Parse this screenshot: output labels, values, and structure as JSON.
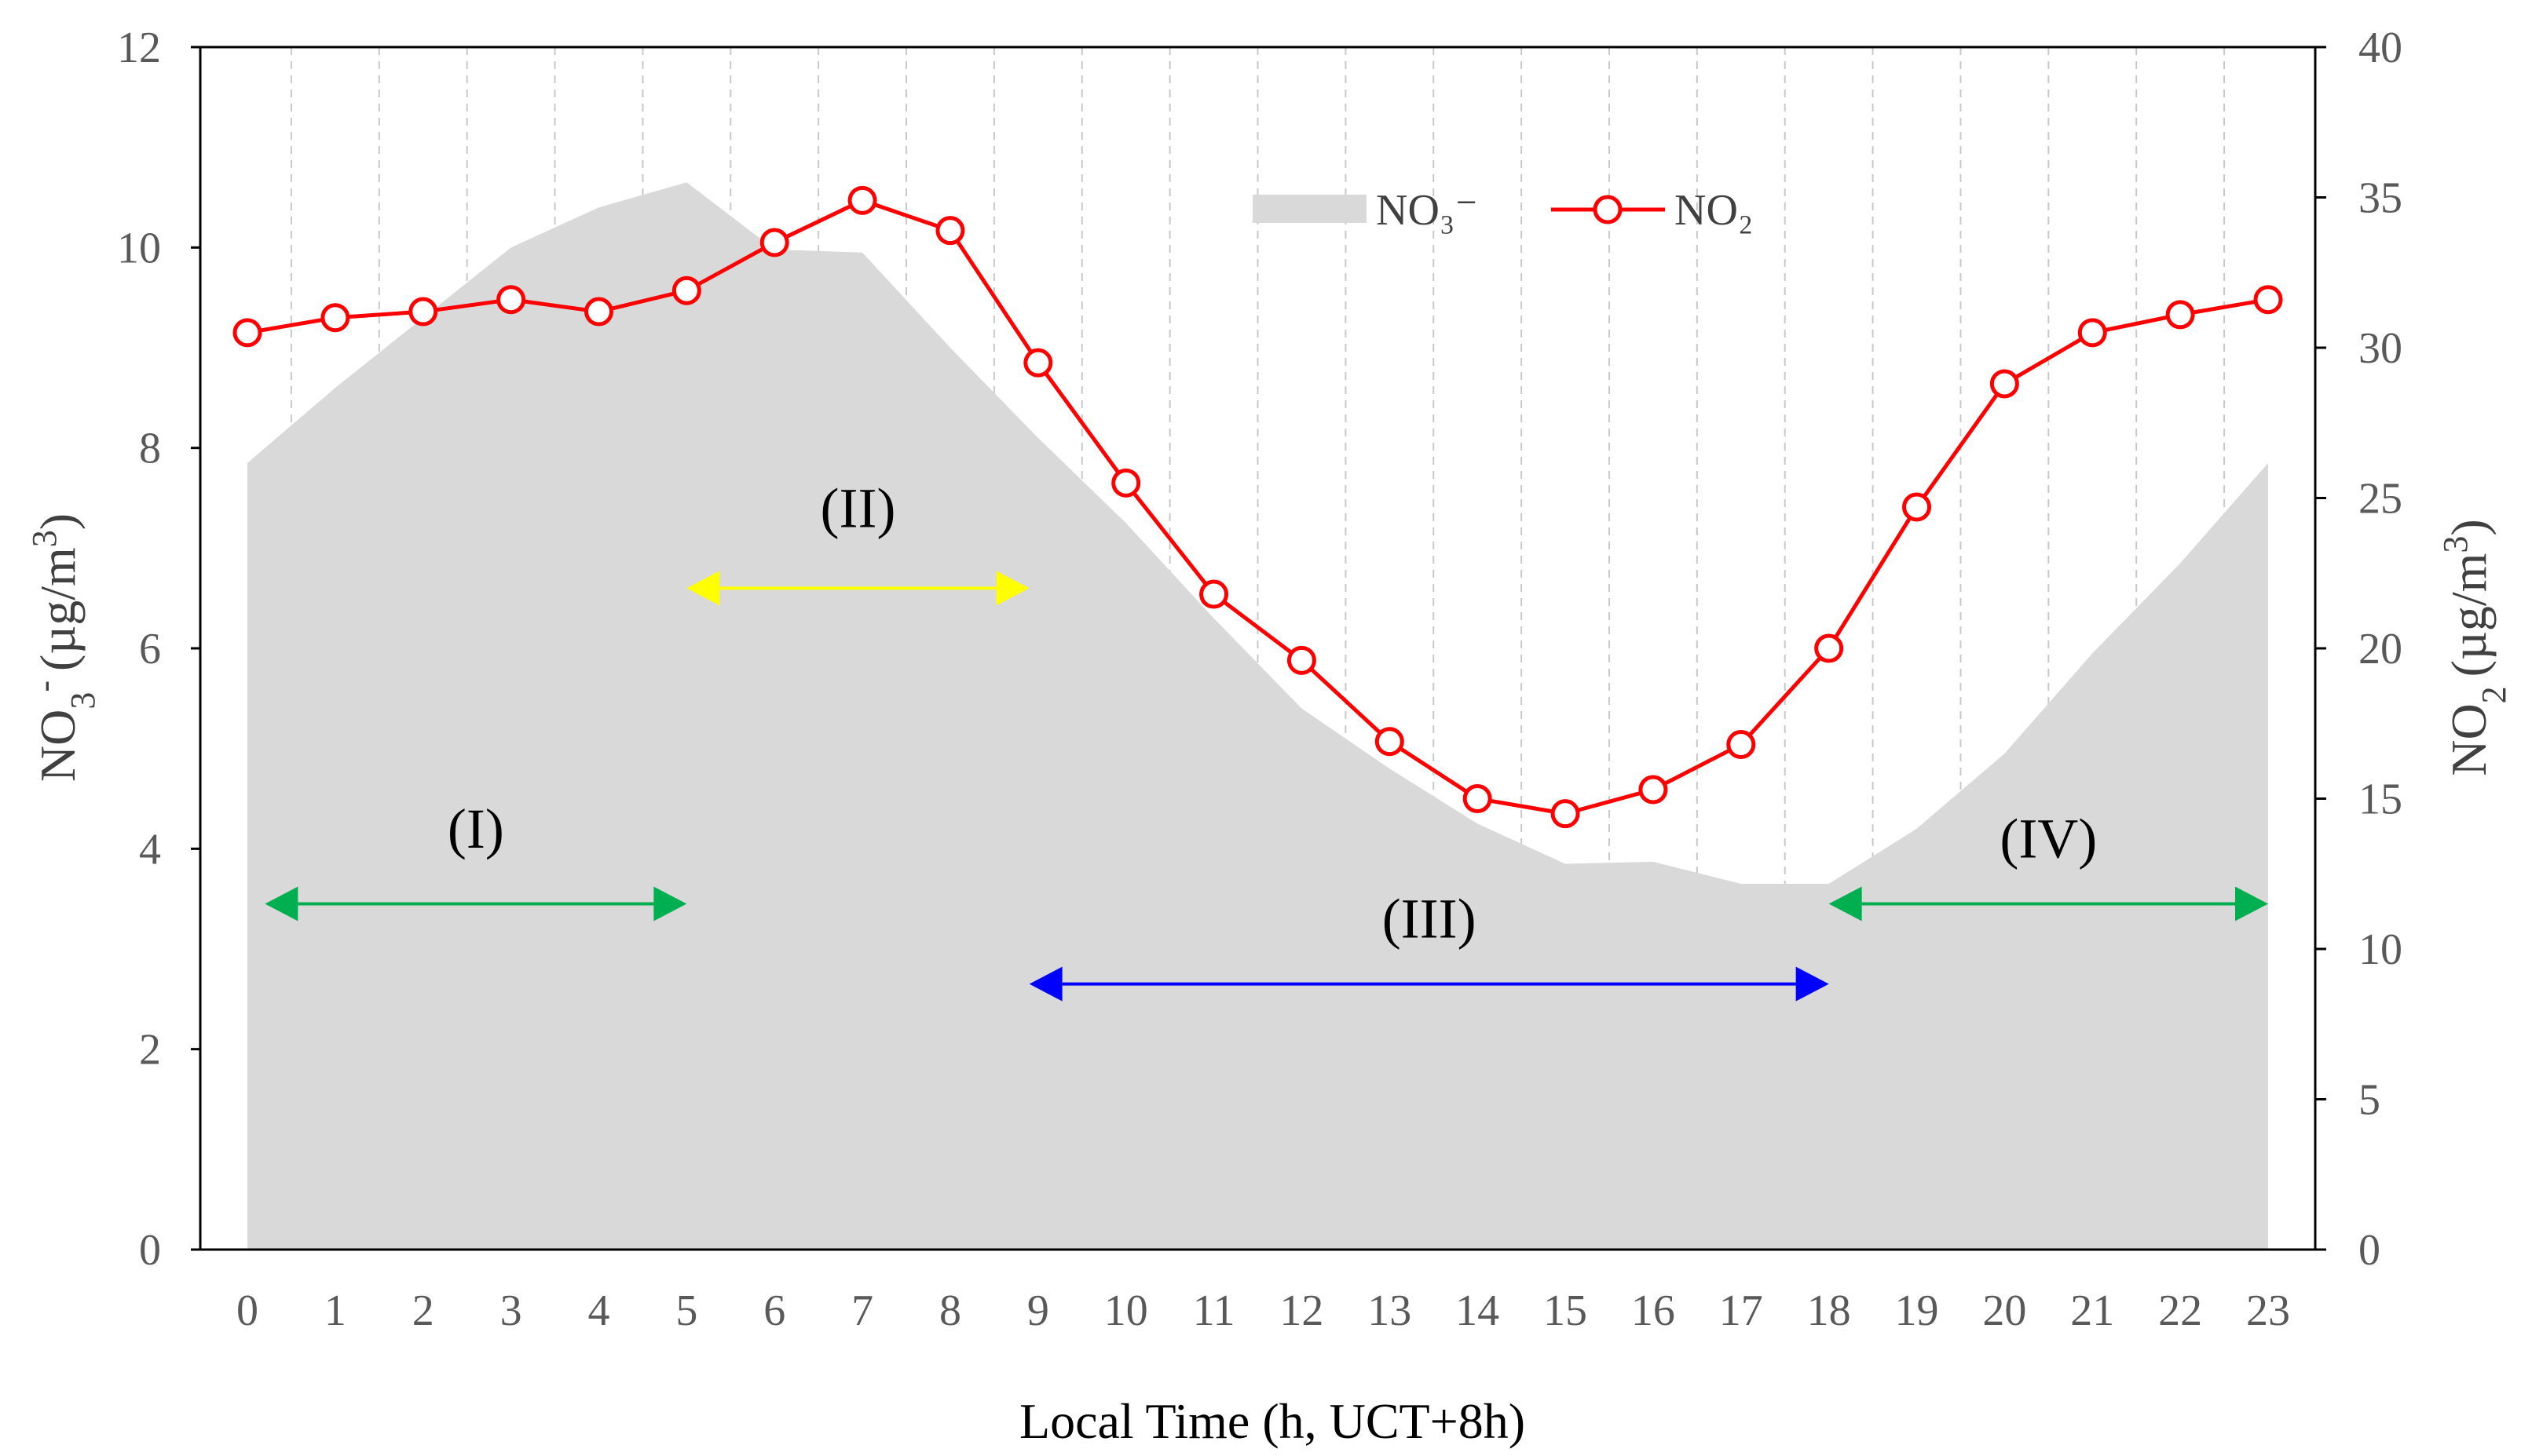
{
  "chart_data": {
    "type": "area+line",
    "x": [
      0,
      1,
      2,
      3,
      4,
      5,
      6,
      7,
      8,
      9,
      10,
      11,
      12,
      13,
      14,
      15,
      16,
      17,
      18,
      19,
      20,
      21,
      22,
      23
    ],
    "xlabel": "Local Time (h, UCT+8h)",
    "series": [
      {
        "name": "NO₃⁻",
        "kind": "area",
        "axis": "left",
        "color": "#d9d9d9",
        "values": [
          7.85,
          8.6,
          9.3,
          10.0,
          10.4,
          10.65,
          9.98,
          9.95,
          9.0,
          8.1,
          7.25,
          6.3,
          5.4,
          4.8,
          4.25,
          3.85,
          3.87,
          3.65,
          3.65,
          4.2,
          4.95,
          5.95,
          6.85,
          7.85
        ]
      },
      {
        "name": "NO₂",
        "kind": "line",
        "axis": "right",
        "color": "#ff0000",
        "values": [
          30.5,
          31.0,
          31.2,
          31.6,
          31.2,
          31.9,
          33.5,
          34.9,
          33.9,
          29.5,
          25.5,
          21.8,
          19.6,
          16.9,
          15.0,
          14.5,
          15.3,
          16.8,
          20.0,
          24.7,
          28.8,
          30.5,
          31.1,
          31.6
        ]
      }
    ],
    "left_axis": {
      "label_main": "NO",
      "label_sub": "3",
      "label_sup": "-",
      "label_units": "(µg/m",
      "label_units_sup": "3",
      "label_close": ")",
      "range": [
        0,
        12
      ],
      "ticks": [
        "0",
        "2",
        "4",
        "6",
        "8",
        "10",
        "12"
      ]
    },
    "right_axis": {
      "label_main": "NO",
      "label_sub": "2",
      "label_units": "(µg/m",
      "label_units_sup": "3",
      "label_close": ")",
      "range": [
        0,
        40
      ],
      "ticks": [
        "0",
        "5",
        "10",
        "15",
        "20",
        "25",
        "30",
        "35",
        "40"
      ]
    },
    "x_ticks": [
      "0",
      "1",
      "2",
      "3",
      "4",
      "5",
      "6",
      "7",
      "8",
      "9",
      "10",
      "11",
      "12",
      "13",
      "14",
      "15",
      "16",
      "17",
      "18",
      "19",
      "20",
      "21",
      "22",
      "23"
    ],
    "legend": [
      {
        "label": "NO₃⁻",
        "kind": "area"
      },
      {
        "label": "NO₂",
        "kind": "line"
      }
    ],
    "legend_position": "top-center",
    "grid": "vertical-dashed",
    "periods": [
      {
        "label": "(I)",
        "x_start": 0.2,
        "x_end": 5.0,
        "level": 3.45,
        "color": "#00b050",
        "label_level": 4.2
      },
      {
        "label": "(II)",
        "x_start": 5.0,
        "x_end": 8.9,
        "level": 6.6,
        "color": "#ffff00",
        "label_level": 7.4
      },
      {
        "label": "(III)",
        "x_start": 8.9,
        "x_end": 18.0,
        "level": 2.65,
        "color": "#0000ff",
        "label_level": 3.3
      },
      {
        "label": "(IV)",
        "x_start": 18.0,
        "x_end": 23.0,
        "level": 3.45,
        "color": "#00b050",
        "label_level": 4.1
      }
    ]
  }
}
